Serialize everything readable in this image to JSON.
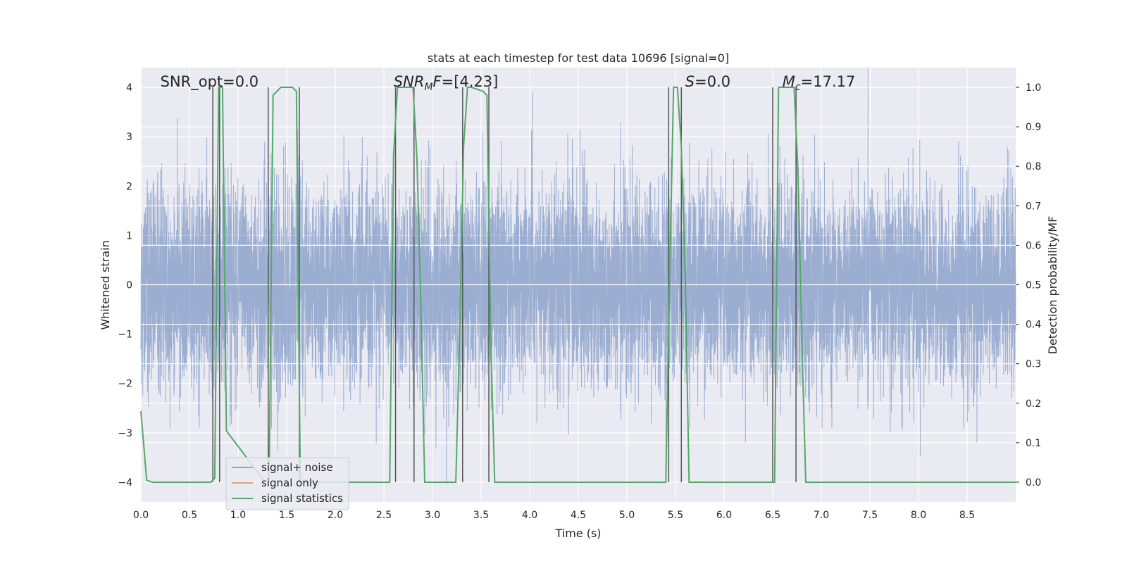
{
  "chart_data": {
    "type": "line",
    "title": "stats at each timestep for test data 10696 [signal=0]",
    "xlabel": "Time (s)",
    "ylabel": "Whitened strain",
    "ylabel_right": "Detection probability/MF",
    "xlim": [
      0.0,
      9.0
    ],
    "ylim": [
      -4.4,
      4.4
    ],
    "ylim_right": [
      -0.05,
      1.05
    ],
    "x_ticks": [
      "0.0",
      "0.5",
      "1.0",
      "1.5",
      "2.0",
      "2.5",
      "3.0",
      "3.5",
      "4.0",
      "4.5",
      "5.0",
      "5.5",
      "6.0",
      "6.5",
      "7.0",
      "7.5",
      "8.0",
      "8.5"
    ],
    "y_ticks": [
      "4",
      "3",
      "2",
      "1",
      "0",
      "−1",
      "−2",
      "−3",
      "−4"
    ],
    "y_ticks_right": [
      "1.0",
      "0.9",
      "0.8",
      "0.7",
      "0.6",
      "0.5",
      "0.4",
      "0.3",
      "0.2",
      "0.1",
      "0.0"
    ],
    "grid": true,
    "legend_position": "lower-left",
    "annotations": [
      {
        "parts": [
          {
            "t": "SNR_opt=0.0",
            "italic": false
          }
        ],
        "x": 0.2
      },
      {
        "parts": [
          {
            "t": "SNR",
            "italic": true
          },
          {
            "t": "M",
            "italic": true,
            "sub": true
          },
          {
            "t": "F",
            "italic": true
          },
          {
            "t": "=[4.23]",
            "italic": false
          }
        ],
        "x": 2.6
      },
      {
        "parts": [
          {
            "t": "S",
            "italic": true
          },
          {
            "t": "=0.0",
            "italic": false
          }
        ],
        "x": 5.6
      },
      {
        "parts": [
          {
            "t": "M",
            "italic": true
          },
          {
            "t": "c",
            "italic": true,
            "sub": true
          },
          {
            "t": "=17.17",
            "italic": false
          }
        ],
        "x": 6.6
      }
    ],
    "series": [
      {
        "name": "signal+ noise",
        "color": "#4c72b0",
        "style": "noise",
        "amplitude_std": 1.0
      },
      {
        "name": "signal only",
        "color": "#dd8452",
        "style": "line",
        "values": []
      },
      {
        "name": "signal statistics",
        "color": "#55a868",
        "style": "line",
        "x": [
          0.0,
          0.06,
          0.12,
          0.72,
          0.76,
          0.8,
          0.84,
          0.88,
          1.28,
          1.32,
          1.36,
          1.4,
          1.44,
          1.56,
          1.6,
          1.64,
          2.56,
          2.6,
          2.64,
          2.68,
          2.8,
          2.84,
          2.88,
          2.92,
          3.24,
          3.28,
          3.32,
          3.36,
          3.4,
          3.52,
          3.56,
          3.6,
          3.64,
          3.68,
          5.4,
          5.44,
          5.48,
          5.52,
          5.56,
          5.6,
          5.64,
          6.48,
          6.52,
          6.56,
          6.6,
          6.68,
          6.72,
          6.76,
          6.8,
          6.84,
          6.88,
          9.0
        ],
        "y": [
          0.18,
          0.005,
          0.0,
          0.0,
          0.01,
          1.0,
          1.0,
          0.13,
          0.0,
          0.01,
          0.98,
          0.99,
          1.0,
          1.0,
          0.99,
          0.0,
          0.0,
          0.83,
          1.0,
          1.0,
          1.0,
          0.82,
          0.45,
          0.0,
          0.0,
          0.38,
          0.85,
          1.0,
          1.0,
          0.99,
          0.98,
          0.35,
          0.0,
          0.0,
          0.0,
          0.52,
          1.0,
          1.0,
          0.85,
          0.52,
          0.0,
          0.0,
          0.0,
          1.0,
          1.0,
          1.0,
          1.0,
          0.79,
          0.36,
          0.0,
          0.0,
          0.0
        ]
      }
    ],
    "event_markers": [
      {
        "x": 0.74,
        "y_top": 1.0
      },
      {
        "x": 0.81,
        "y_top": 1.0
      },
      {
        "x": 1.31,
        "y_top": 1.0
      },
      {
        "x": 1.63,
        "y_top": 1.0
      },
      {
        "x": 2.62,
        "y_top": 1.0
      },
      {
        "x": 2.81,
        "y_top": 1.0
      },
      {
        "x": 3.31,
        "y_top": 1.0
      },
      {
        "x": 3.58,
        "y_top": 1.0
      },
      {
        "x": 5.43,
        "y_top": 1.0
      },
      {
        "x": 5.56,
        "y_top": 1.0
      },
      {
        "x": 6.5,
        "y_top": 1.0
      },
      {
        "x": 6.74,
        "y_top": 1.0
      }
    ],
    "colors": {
      "plot_bg": "#eaeaf2",
      "grid": "#ffffff",
      "marker": "#555555",
      "noise": "#4c72b0"
    }
  }
}
